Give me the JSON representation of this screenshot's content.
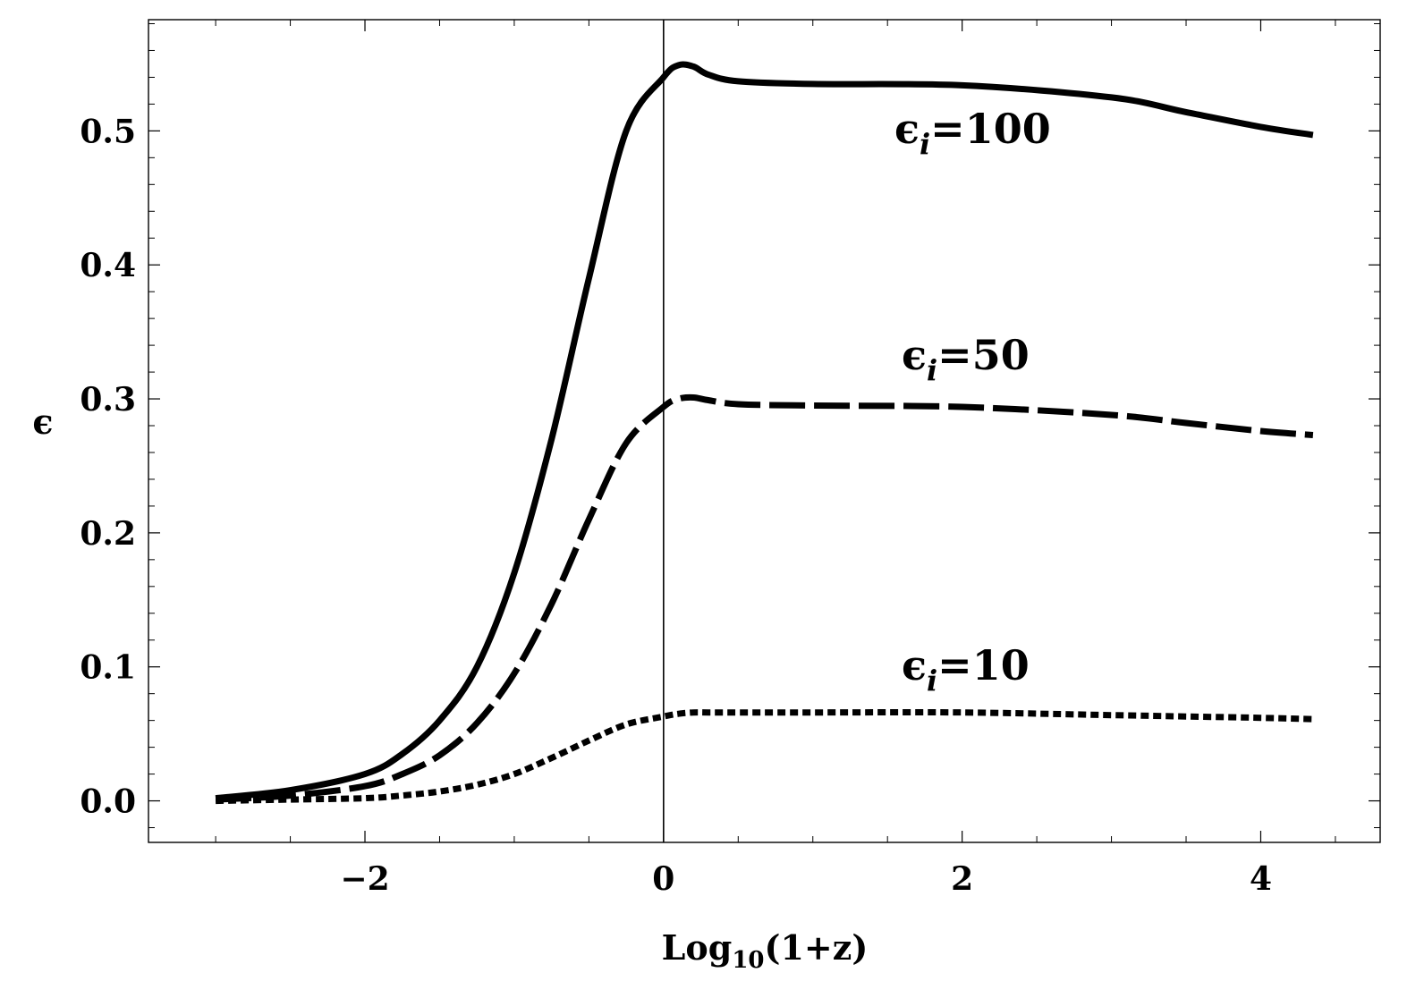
{
  "chart_data": {
    "type": "line",
    "xlabel": {
      "base": "Log",
      "sub": "10",
      "rest": "(1+z)"
    },
    "ylabel": "ϵ",
    "xlim": [
      -3.45,
      4.8
    ],
    "ylim": [
      -0.031,
      0.583
    ],
    "x_ticks": [
      {
        "value": -2,
        "label": "−2"
      },
      {
        "value": 0,
        "label": "0"
      },
      {
        "value": 2,
        "label": "2"
      },
      {
        "value": 4,
        "label": "4"
      }
    ],
    "y_ticks": [
      {
        "value": 0.0,
        "label": "0.0"
      },
      {
        "value": 0.1,
        "label": "0.1"
      },
      {
        "value": 0.2,
        "label": "0.2"
      },
      {
        "value": 0.3,
        "label": "0.3"
      },
      {
        "value": 0.4,
        "label": "0.4"
      },
      {
        "value": 0.5,
        "label": "0.5"
      }
    ],
    "vertical_line_x": 0,
    "grid": false,
    "series": [
      {
        "name": "ϵi=100",
        "label": {
          "base": "ϵ",
          "sub": "i",
          "rest": "=100"
        },
        "style": "solid",
        "x": [
          -3.0,
          -2.5,
          -2.0,
          -1.75,
          -1.5,
          -1.25,
          -1.0,
          -0.75,
          -0.5,
          -0.25,
          0.0,
          0.1,
          0.2,
          0.3,
          0.5,
          1.0,
          2.0,
          3.0,
          3.5,
          4.0,
          4.35
        ],
        "values": [
          0.002,
          0.008,
          0.02,
          0.035,
          0.06,
          0.1,
          0.17,
          0.27,
          0.39,
          0.5,
          0.54,
          0.549,
          0.548,
          0.542,
          0.537,
          0.535,
          0.534,
          0.525,
          0.514,
          0.503,
          0.497
        ]
      },
      {
        "name": "ϵi=50",
        "label": {
          "base": "ϵ",
          "sub": "i",
          "rest": "=50"
        },
        "style": "dashed",
        "x": [
          -3.0,
          -2.5,
          -2.0,
          -1.75,
          -1.5,
          -1.25,
          -1.0,
          -0.75,
          -0.5,
          -0.25,
          0.0,
          0.1,
          0.2,
          0.3,
          0.5,
          1.0,
          2.0,
          3.0,
          3.5,
          4.0,
          4.35
        ],
        "values": [
          0.001,
          0.004,
          0.011,
          0.02,
          0.034,
          0.058,
          0.095,
          0.147,
          0.21,
          0.267,
          0.294,
          0.3,
          0.301,
          0.299,
          0.296,
          0.295,
          0.294,
          0.288,
          0.282,
          0.276,
          0.273
        ]
      },
      {
        "name": "ϵi=10",
        "label": {
          "base": "ϵ",
          "sub": "i",
          "rest": "=10"
        },
        "style": "dotted",
        "x": [
          -3.0,
          -2.5,
          -2.0,
          -1.75,
          -1.5,
          -1.25,
          -1.0,
          -0.75,
          -0.5,
          -0.25,
          0.0,
          0.1,
          0.2,
          0.3,
          0.5,
          1.0,
          2.0,
          3.0,
          3.5,
          4.0,
          4.35
        ],
        "values": [
          0.0,
          0.001,
          0.002,
          0.004,
          0.007,
          0.012,
          0.02,
          0.032,
          0.045,
          0.057,
          0.063,
          0.065,
          0.066,
          0.066,
          0.066,
          0.066,
          0.066,
          0.064,
          0.063,
          0.062,
          0.061
        ]
      }
    ]
  }
}
